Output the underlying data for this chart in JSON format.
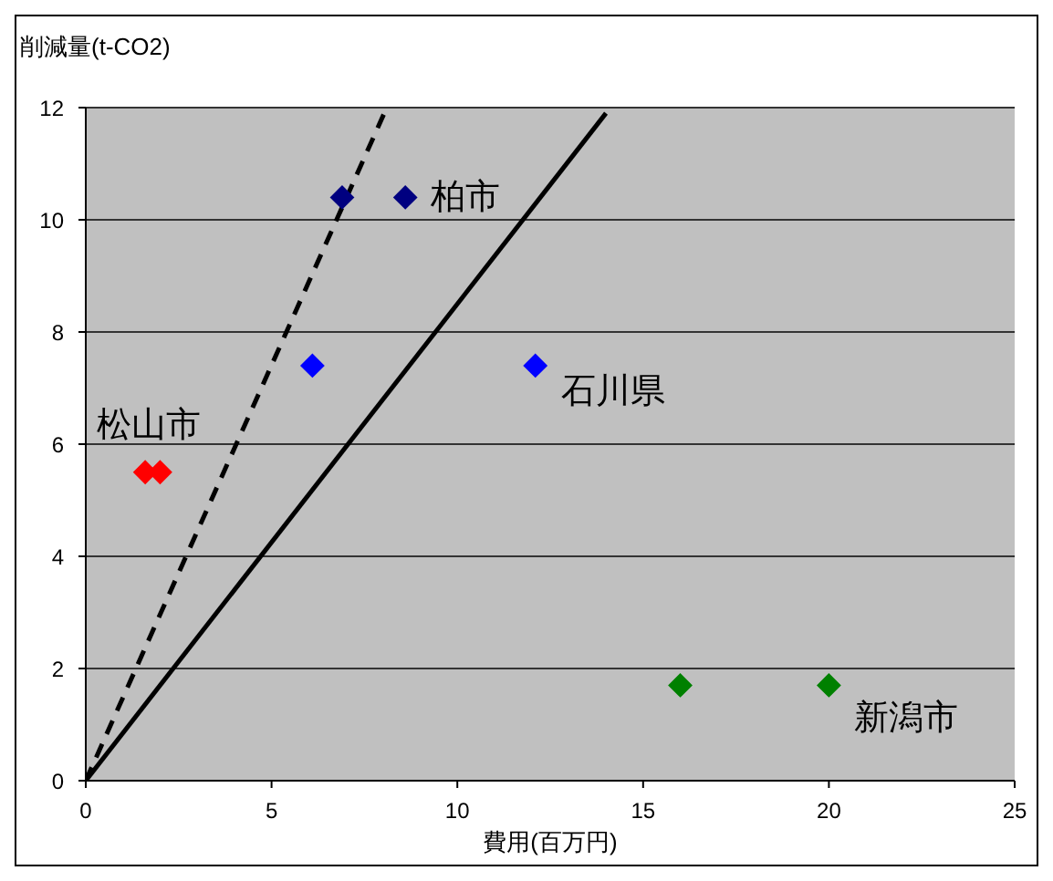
{
  "chart_data": {
    "type": "scatter",
    "xlabel": "費用(百万円)",
    "ylabel": "削減量(t-CO2)",
    "xlim": [
      0,
      25
    ],
    "xticks": [
      0,
      5,
      10,
      15,
      20,
      25
    ],
    "ylim": [
      0,
      12
    ],
    "yticks": [
      0,
      2,
      4,
      6,
      8,
      10,
      12
    ],
    "grid": "y",
    "legend": false,
    "marker": "diamond",
    "series": [
      {
        "x": [
          8.6,
          12.1,
          2.0,
          20.0
        ],
        "values": [
          10.4,
          7.4,
          5.5,
          1.7
        ],
        "colors": [
          "#000080",
          "#0000ff",
          "#ff0000",
          "#008000"
        ]
      },
      {
        "x": [
          6.9,
          6.1,
          1.6,
          16.0
        ],
        "values": [
          10.4,
          7.4,
          5.5,
          1.7
        ],
        "colors": [
          "#000080",
          "#0000ff",
          "#ff0000",
          "#008000"
        ]
      },
      {
        "type": "line",
        "color": "#000000",
        "line_style": "solid",
        "marker": "none",
        "x": [
          0,
          14.0
        ],
        "values": [
          0,
          11.9
        ]
      },
      {
        "type": "line",
        "color": "#000000",
        "line_style": "dashed",
        "marker": "none",
        "x": [
          0,
          8.1
        ],
        "values": [
          0,
          12
        ]
      }
    ],
    "annotations": [
      {
        "text": "柏市",
        "x": 8.6,
        "y": 10.4
      },
      {
        "text": "石川県",
        "x": 12.1,
        "y": 7.4
      },
      {
        "text": "松山市",
        "x": 2.0,
        "y": 5.5
      },
      {
        "text": "新潟市",
        "x": 20.0,
        "y": 1.7
      }
    ]
  }
}
